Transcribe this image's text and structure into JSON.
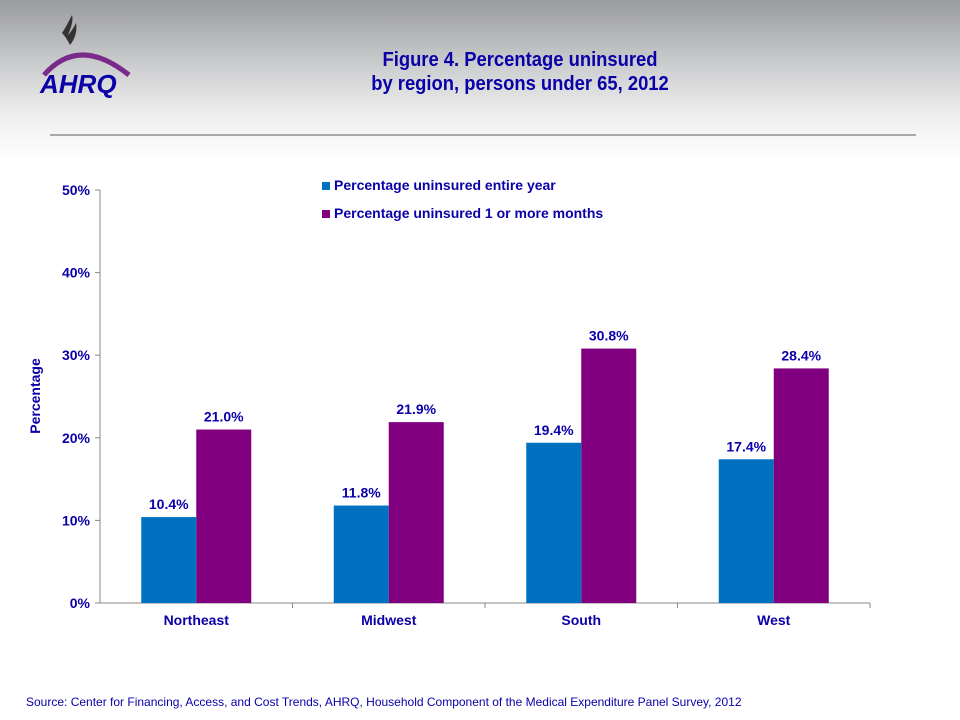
{
  "logo": {
    "text": "AHRQ"
  },
  "title_line1": "Figure 4. Percentage uninsured",
  "title_line2": "by region, persons under 65, 2012",
  "source": "Source: Center for Financing, Access, and Cost Trends, AHRQ, Household Component of the Medical Expenditure Panel Survey,  2012",
  "chart_data": {
    "type": "bar",
    "title": "Figure 4. Percentage uninsured by region, persons under 65, 2012",
    "xlabel": "",
    "ylabel": "Percentage",
    "ylim": [
      0,
      50
    ],
    "yticks": [
      "0%",
      "10%",
      "20%",
      "30%",
      "40%",
      "50%"
    ],
    "grid": false,
    "legend": "top-center",
    "categories": [
      "Northeast",
      "Midwest",
      "South",
      "West"
    ],
    "series": [
      {
        "name": "Percentage uninsured entire year",
        "color": "#0070c0",
        "values": [
          10.4,
          11.8,
          19.4,
          17.4
        ],
        "labels": [
          "10.4%",
          "11.8%",
          "19.4%",
          "17.4%"
        ]
      },
      {
        "name": "Percentage uninsured 1 or more months",
        "color": "#800080",
        "values": [
          21.0,
          21.9,
          30.8,
          28.4
        ],
        "labels": [
          "21.0%",
          "21.9%",
          "30.8%",
          "28.4%"
        ]
      }
    ]
  }
}
